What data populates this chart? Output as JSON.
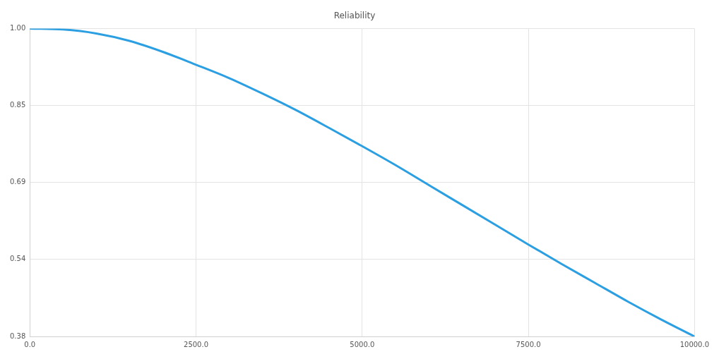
{
  "chart_data": {
    "type": "line",
    "title": "Reliability",
    "x": [
      0,
      500,
      1000,
      1500,
      2000,
      2500,
      3000,
      3500,
      4000,
      4500,
      5000,
      5500,
      6000,
      6500,
      7000,
      7500,
      8000,
      8500,
      9000,
      9500,
      10000
    ],
    "series": [
      {
        "color": "#2b9fe2",
        "values": [
          1.0,
          0.998,
          0.99,
          0.975,
          0.953,
          0.927,
          0.9,
          0.869,
          0.836,
          0.8,
          0.763,
          0.725,
          0.685,
          0.645,
          0.605,
          0.565,
          0.526,
          0.488,
          0.45,
          0.414,
          0.38
        ]
      }
    ],
    "xlim": [
      0,
      10000
    ],
    "xticks": [
      {
        "value": 0,
        "label": "0.0"
      },
      {
        "value": 2500,
        "label": "2500.0"
      },
      {
        "value": 5000,
        "label": "5000.0"
      },
      {
        "value": 7500,
        "label": "7500.0"
      },
      {
        "value": 10000,
        "label": "10000.0"
      }
    ],
    "ylim": [
      0.38,
      1.0
    ],
    "yticks": [
      {
        "value": 0.38,
        "label": "0.38"
      },
      {
        "value": 0.535,
        "label": "0.54"
      },
      {
        "value": 0.69,
        "label": "0.69"
      },
      {
        "value": 0.845,
        "label": "0.85"
      },
      {
        "value": 1.0,
        "label": "1.00"
      }
    ],
    "grid": true,
    "legend": false,
    "marker": "none",
    "line_style": "solid"
  }
}
